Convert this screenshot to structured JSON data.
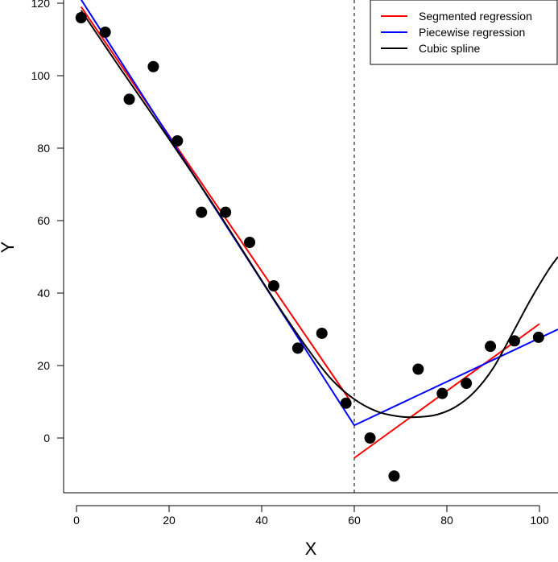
{
  "chart_data": {
    "type": "scatter",
    "title": "",
    "xlabel": "X",
    "ylabel": "Y",
    "xlim": [
      0,
      104
    ],
    "ylim": [
      -15,
      121
    ],
    "xticks": [
      "0",
      "20",
      "40",
      "60",
      "80",
      "100"
    ],
    "yticks": [
      "0",
      "20",
      "40",
      "60",
      "80",
      "100",
      "120"
    ],
    "grid": false,
    "legend_position": "top-right",
    "breakpoint_x": 60,
    "points": {
      "x": [
        1,
        6.2,
        11.4,
        16.6,
        21.8,
        27,
        32.2,
        37.4,
        42.6,
        47.8,
        53,
        58.2,
        63.4,
        68.6,
        73.8,
        79,
        84.2,
        89.4,
        94.6,
        99.8
      ],
      "y": [
        116,
        112,
        93.5,
        102.5,
        82,
        62.3,
        62.3,
        54,
        42,
        24.8,
        28.9,
        9.6,
        0,
        -10.5,
        19,
        12.3,
        15.1,
        25.3,
        26.8,
        27.8
      ]
    },
    "series": [
      {
        "name": "Segmented regression",
        "color": "#ff0000",
        "segments": [
          {
            "x": [
              1,
              59
            ],
            "y": [
              119,
              10.5
            ]
          },
          {
            "x": [
              60,
              100
            ],
            "y": [
              -5.5,
              31.5
            ]
          }
        ]
      },
      {
        "name": "Piecewise regression",
        "color": "#0000ff",
        "segments": [
          {
            "x": [
              1,
              60
            ],
            "y": [
              121,
              3.5
            ]
          },
          {
            "x": [
              60,
              104
            ],
            "y": [
              3.5,
              30
            ]
          }
        ]
      },
      {
        "name": "Cubic spline",
        "color": "#000000",
        "curve": {
          "x": [
            1,
            10,
            20,
            30,
            40,
            45,
            50,
            55,
            60,
            65,
            70,
            74,
            78,
            82,
            86,
            90,
            94,
            98,
            102,
            104
          ],
          "y": [
            118,
            101,
            82.5,
            63.5,
            43.5,
            33.7,
            24.5,
            16.3,
            10.7,
            7.3,
            5.9,
            5.8,
            6.5,
            8.7,
            12.8,
            19.3,
            28.5,
            38,
            46.5,
            50
          ]
        }
      }
    ]
  }
}
